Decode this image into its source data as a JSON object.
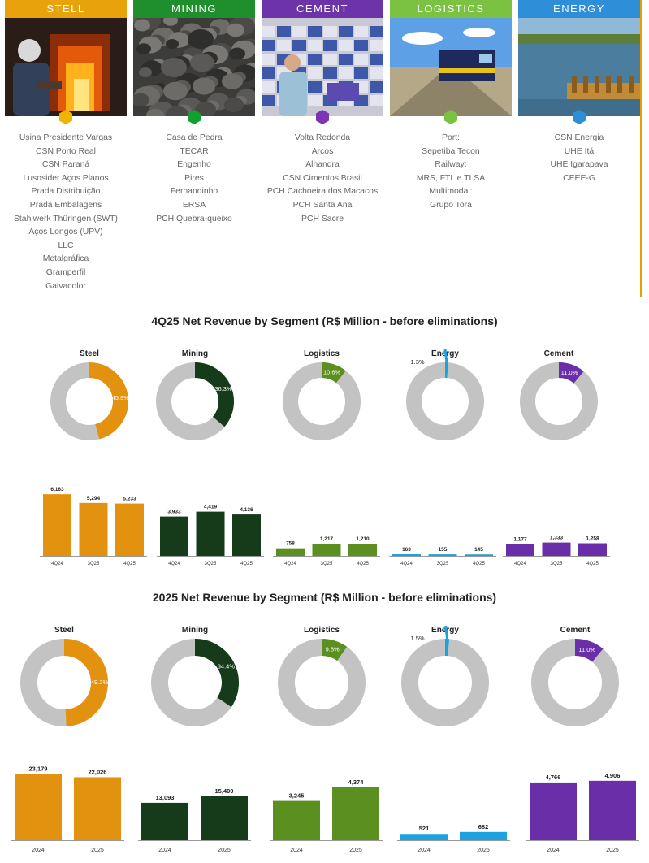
{
  "segments": [
    {
      "name": "STELL",
      "color": "#e8a20b",
      "photo": "steel-mill-worker",
      "icon": "hexagon-icon",
      "items": [
        "Usina Presidente Vargas",
        "CSN Porto Real",
        "CSN Paraná",
        "Lusosider Aços Planos",
        "Prada Distribuição",
        "Prada Embalagens",
        "Stahlwerk Thüringen (SWT)",
        "Aços Longos (UPV)",
        "LLC",
        "Metalgráfica",
        "Gramperfil",
        "Galvacolor"
      ]
    },
    {
      "name": "MINING",
      "color": "#1e8f2c",
      "photo": "iron-ore-rocks",
      "icon": "hexagon-icon",
      "items": [
        "Casa de Pedra",
        "TECAR",
        "Engenho",
        "Pires",
        "Fernandinho",
        "ERSA",
        "PCH Quebra-queixo"
      ]
    },
    {
      "name": "CEMENT",
      "color": "#6d33a8",
      "photo": "cement-warehouse-worker",
      "icon": "hexagon-icon",
      "items": [
        "Volta Redonda",
        "Arcos",
        "Alhandra",
        "CSN Cimentos Brasil",
        "PCH Cachoeira dos Macacos",
        "PCH Santa Ana",
        "PCH Sacre"
      ]
    },
    {
      "name": "LOGISTICS",
      "color": "#7cc242",
      "photo": "locomotive-train",
      "icon": "hexagon-icon",
      "items": [
        "Port:",
        "Sepetiba Tecon",
        "Railway:",
        "MRS, FTL e TLSA",
        "Multimodal:",
        "Grupo Tora"
      ]
    },
    {
      "name": "ENERGY",
      "color": "#2e8fd8",
      "photo": "hydro-dam-river",
      "icon": "hexagon-icon",
      "items": [
        "CSN Energia",
        "UHE Itá",
        "UHE Igarapava",
        "CEEE-G"
      ]
    }
  ],
  "chart_data": [
    {
      "type": "pie",
      "title": "4Q25 Net Revenue by Segment (R$ Million - before eliminations)",
      "donuts": [
        {
          "name": "Steel",
          "share": 45.9,
          "label": "45.9%",
          "color": "#e39210"
        },
        {
          "name": "Mining",
          "share": 36.3,
          "label": "36.3%",
          "color": "#163b1a"
        },
        {
          "name": "Logistics",
          "share": 10.6,
          "label": "10.6%",
          "color": "#5b8f1f"
        },
        {
          "name": "Energy",
          "share": 1.3,
          "label": "1.3%",
          "color": "#1aa3e0"
        },
        {
          "name": "Cement",
          "share": 11.0,
          "label": "11.0%",
          "color": "#6a2ea8"
        }
      ]
    },
    {
      "type": "bar",
      "categories": [
        "4Q24",
        "3Q25",
        "4Q25"
      ],
      "ylim": [
        0,
        6500
      ],
      "series": [
        {
          "name": "Steel",
          "color": "#e39210",
          "values": [
            6163,
            5294,
            5233
          ],
          "labels": [
            "6,163",
            "5,294",
            "5,233"
          ]
        },
        {
          "name": "Mining",
          "color": "#163b1a",
          "values": [
            3933,
            4419,
            4136
          ],
          "labels": [
            "3,933",
            "4,419",
            "4,136"
          ]
        },
        {
          "name": "Logistics",
          "color": "#5b8f1f",
          "values": [
            758,
            1217,
            1210
          ],
          "labels": [
            "758",
            "1,217",
            "1,210"
          ]
        },
        {
          "name": "Energy",
          "color": "#1aa3e0",
          "values": [
            163,
            155,
            145
          ],
          "labels": [
            "163",
            "155",
            "145"
          ]
        },
        {
          "name": "Cement",
          "color": "#6a2ea8",
          "values": [
            1177,
            1333,
            1258
          ],
          "labels": [
            "1,177",
            "1,333",
            "1,258"
          ]
        }
      ]
    },
    {
      "type": "pie",
      "title": "2025 Net Revenue by Segment (R$ Million - before eliminations)",
      "donuts": [
        {
          "name": "Steel",
          "share": 49.2,
          "label": "49.2%",
          "color": "#e39210"
        },
        {
          "name": "Mining",
          "share": 34.4,
          "label": "34.4%",
          "color": "#163b1a"
        },
        {
          "name": "Logistics",
          "share": 9.8,
          "label": "9.8%",
          "color": "#5b8f1f"
        },
        {
          "name": "Energy",
          "share": 1.5,
          "label": "1.5%",
          "color": "#1aa3e0"
        },
        {
          "name": "Cement",
          "share": 11.0,
          "label": "11.0%",
          "color": "#6a2ea8"
        }
      ]
    },
    {
      "type": "bar",
      "categories": [
        "2024",
        "2025"
      ],
      "series": [
        {
          "name": "Steel",
          "color": "#e39210",
          "values": [
            23179,
            22026
          ],
          "labels": [
            "23,179",
            "22,026"
          ],
          "ylim": [
            0,
            25000
          ]
        },
        {
          "name": "Mining",
          "color": "#163b1a",
          "values": [
            13093,
            15400
          ],
          "labels": [
            "13,093",
            "15,400"
          ],
          "ylim": [
            0,
            25000
          ]
        },
        {
          "name": "Logistics",
          "color": "#5b8f1f",
          "values": [
            3245,
            4374
          ],
          "labels": [
            "3,245",
            "4,374"
          ],
          "ylim": [
            0,
            5900
          ]
        },
        {
          "name": "Energy",
          "color": "#1aa3e0",
          "values": [
            521,
            682
          ],
          "labels": [
            "521",
            "682"
          ],
          "ylim": [
            0,
            5900
          ]
        },
        {
          "name": "Cement",
          "color": "#6a2ea8",
          "values": [
            4766,
            4906
          ],
          "labels": [
            "4,766",
            "4,906"
          ],
          "ylim": [
            0,
            5900
          ]
        }
      ]
    }
  ]
}
